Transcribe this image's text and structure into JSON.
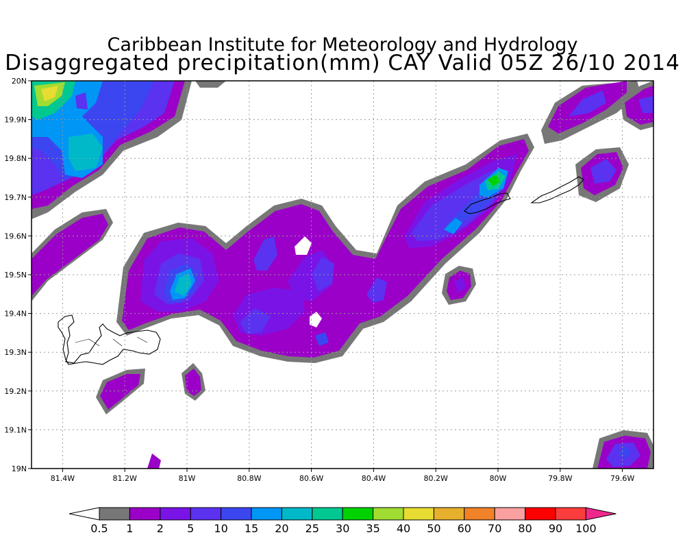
{
  "title": {
    "line1": "Caribbean Institute for Meteorology and Hydrology",
    "line2": "Disaggregated precipitation(mm) CAY Valid 05Z 26/10 2014"
  },
  "map": {
    "lon_range": [
      -81.5,
      -79.5
    ],
    "lat_range": [
      19.0,
      20.0
    ],
    "grid": true,
    "x_ticks": [
      "81.4W",
      "81.2W",
      "81W",
      "80.8W",
      "80.6W",
      "80.4W",
      "80.2W",
      "80W",
      "79.8W",
      "79.6W"
    ],
    "y_ticks": [
      "20N",
      "19.9N",
      "19.8N",
      "19.7N",
      "19.6N",
      "19.5N",
      "19.4N",
      "19.3N",
      "19.2N",
      "19.1N",
      "19N"
    ]
  },
  "colorbar": {
    "labels": [
      "0.5",
      "1",
      "2",
      "5",
      "10",
      "15",
      "20",
      "25",
      "30",
      "35",
      "40",
      "50",
      "60",
      "70",
      "80",
      "90",
      "100"
    ],
    "colors": [
      "#777777",
      "#9b00c8",
      "#7a14e6",
      "#5a32f0",
      "#3c46f0",
      "#0096f5",
      "#00b9c8",
      "#00c890",
      "#00d200",
      "#a0dc32",
      "#e6dc32",
      "#e6af2d",
      "#f08228",
      "#faa0a0",
      "#ff0000",
      "#fa3c3c",
      "#f0288c"
    ]
  }
}
